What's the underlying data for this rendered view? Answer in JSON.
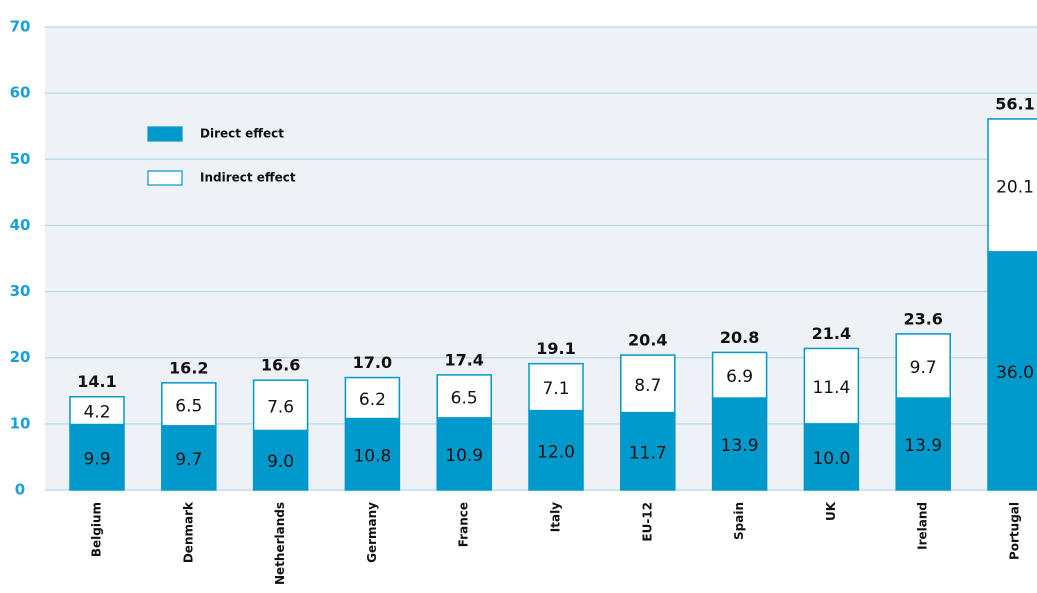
{
  "chart_data": {
    "type": "stacked_bar",
    "categories": [
      "Belgium",
      "Denmark",
      "Netherlands",
      "Germany",
      "France",
      "Italy",
      "EU-12",
      "Spain",
      "UK",
      "Ireland",
      "Portugal"
    ],
    "series": [
      {
        "name": "Direct effect",
        "color": "#0099cc",
        "values": [
          9.9,
          9.7,
          9.0,
          10.8,
          10.9,
          12.0,
          11.7,
          13.9,
          10.0,
          13.9,
          36.0
        ],
        "value_labels": [
          "9.9",
          "9.7",
          "9.0",
          "10.8",
          "10.9",
          "12.0",
          "11.7",
          "13.9",
          "10.0",
          "13.9",
          "36.0"
        ]
      },
      {
        "name": "Indirect effect",
        "color": "#ffffff",
        "values": [
          4.2,
          6.5,
          7.6,
          6.2,
          6.5,
          7.1,
          8.7,
          6.9,
          11.4,
          9.7,
          20.1
        ],
        "value_labels": [
          "4.2",
          "6.5",
          "7.6",
          "6.2",
          "6.5",
          "7.1",
          "8.7",
          "6.9",
          "11.4",
          "9.7",
          "20.1"
        ]
      }
    ],
    "totals": [
      14.1,
      16.2,
      16.6,
      17.0,
      17.4,
      19.1,
      20.4,
      20.8,
      21.4,
      23.6,
      56.1
    ],
    "total_labels": [
      "14.1",
      "16.2",
      "16.6",
      "17.0",
      "17.4",
      "19.1",
      "20.4",
      "20.8",
      "21.4",
      "23.6",
      "56.1"
    ],
    "ylim": [
      0,
      70
    ],
    "yticks": [
      0,
      10,
      20,
      30,
      40,
      50,
      60,
      70
    ],
    "grid": true
  }
}
